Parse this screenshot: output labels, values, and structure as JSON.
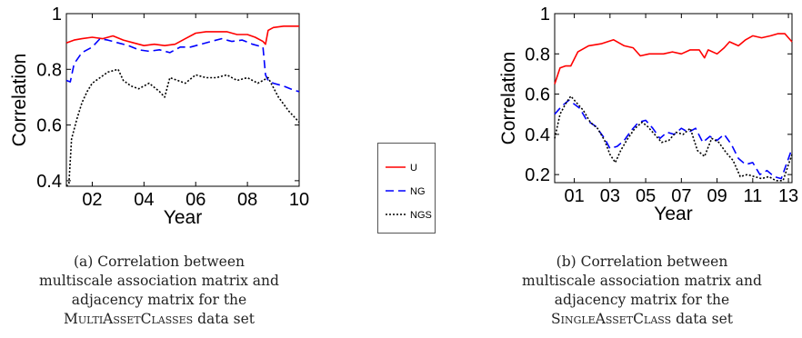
{
  "legend": [
    {
      "name": "U",
      "color": "#ff0000",
      "dash": "solid"
    },
    {
      "name": "NG",
      "color": "#0000ff",
      "dash": "dashed"
    },
    {
      "name": "NGS",
      "color": "#000000",
      "dash": "dotted"
    }
  ],
  "captions": {
    "a": {
      "lines": [
        "(a) Correlation between",
        "multiscale association matrix and",
        "adjacency matrix for the"
      ],
      "dataset_name": "MultiAssetClasses",
      "suffix": " data set"
    },
    "b": {
      "lines": [
        "(b) Correlation between",
        "multiscale association matrix and",
        "adjacency matrix for the"
      ],
      "dataset_name": "SingleAssetClass",
      "suffix": " data set"
    }
  },
  "chart_data": [
    {
      "type": "line",
      "xlabel": "Year",
      "ylabel": "Correlation",
      "xlim": [
        2001.0,
        2010.0
      ],
      "ylim": [
        0.38,
        1.0
      ],
      "xticks": [
        2002,
        2004,
        2006,
        2008,
        2010
      ],
      "xticklabels": [
        "02",
        "04",
        "06",
        "08",
        "10"
      ],
      "yticks": [
        0.4,
        0.6,
        0.8,
        1.0
      ],
      "yticklabels": [
        "0.4",
        "0.6",
        "0.8",
        "1"
      ],
      "series": [
        {
          "name": "U",
          "x": [
            2001.0,
            2001.3,
            2001.6,
            2002.0,
            2002.4,
            2002.8,
            2003.2,
            2003.6,
            2004.0,
            2004.4,
            2004.8,
            2005.2,
            2005.6,
            2006.0,
            2006.4,
            2006.8,
            2007.2,
            2007.6,
            2008.0,
            2008.3,
            2008.6,
            2008.7,
            2008.8,
            2009.0,
            2009.4,
            2009.8,
            2010.0
          ],
          "y": [
            0.895,
            0.905,
            0.91,
            0.915,
            0.91,
            0.92,
            0.905,
            0.895,
            0.885,
            0.89,
            0.885,
            0.89,
            0.91,
            0.93,
            0.935,
            0.935,
            0.935,
            0.925,
            0.925,
            0.915,
            0.9,
            0.89,
            0.94,
            0.95,
            0.955,
            0.955,
            0.955
          ]
        },
        {
          "name": "NG",
          "x": [
            2001.0,
            2001.15,
            2001.3,
            2001.6,
            2002.0,
            2002.3,
            2002.6,
            2003.0,
            2003.4,
            2003.8,
            2004.2,
            2004.6,
            2005.0,
            2005.4,
            2005.8,
            2006.2,
            2006.6,
            2007.0,
            2007.4,
            2007.8,
            2008.2,
            2008.6,
            2008.7,
            2008.8,
            2009.0,
            2009.4,
            2009.8,
            2010.0
          ],
          "y": [
            0.76,
            0.755,
            0.82,
            0.86,
            0.88,
            0.91,
            0.905,
            0.895,
            0.885,
            0.87,
            0.865,
            0.87,
            0.86,
            0.88,
            0.88,
            0.89,
            0.9,
            0.91,
            0.9,
            0.905,
            0.89,
            0.88,
            0.78,
            0.76,
            0.75,
            0.74,
            0.725,
            0.72
          ]
        },
        {
          "name": "NGS",
          "x": [
            2001.0,
            2001.1,
            2001.2,
            2001.4,
            2001.6,
            2001.8,
            2002.0,
            2002.3,
            2002.6,
            2003.0,
            2003.2,
            2003.5,
            2003.8,
            2004.2,
            2004.6,
            2004.8,
            2005.0,
            2005.3,
            2005.6,
            2006.0,
            2006.4,
            2006.8,
            2007.2,
            2007.6,
            2008.0,
            2008.4,
            2008.8,
            2009.2,
            2009.6,
            2010.0
          ],
          "y": [
            0.38,
            0.39,
            0.55,
            0.62,
            0.68,
            0.72,
            0.75,
            0.77,
            0.79,
            0.8,
            0.76,
            0.74,
            0.73,
            0.75,
            0.72,
            0.7,
            0.77,
            0.76,
            0.75,
            0.78,
            0.77,
            0.77,
            0.78,
            0.76,
            0.77,
            0.75,
            0.77,
            0.7,
            0.65,
            0.61
          ]
        }
      ]
    },
    {
      "type": "line",
      "xlabel": "Year",
      "ylabel": "Correlation",
      "xlim": [
        1999.9,
        2013.2
      ],
      "ylim": [
        0.16,
        1.0
      ],
      "xticks": [
        2001,
        2003,
        2005,
        2007,
        2009,
        2011,
        2013
      ],
      "xticklabels": [
        "01",
        "03",
        "05",
        "07",
        "09",
        "11",
        "13"
      ],
      "yticks": [
        0.2,
        0.4,
        0.6,
        0.8,
        1.0
      ],
      "yticklabels": [
        "0.2",
        "0.4",
        "0.6",
        "0.8",
        "1"
      ],
      "series": [
        {
          "name": "U",
          "x": [
            1999.9,
            2000.2,
            2000.5,
            2000.8,
            2001.2,
            2001.8,
            2002.5,
            2003.2,
            2003.8,
            2004.3,
            2004.7,
            2005.2,
            2005.6,
            2006.0,
            2006.5,
            2007.0,
            2007.5,
            2008.0,
            2008.3,
            2008.5,
            2009.0,
            2009.4,
            2009.7,
            2010.2,
            2010.6,
            2011.0,
            2011.5,
            2012.0,
            2012.4,
            2012.8,
            2013.0,
            2013.2
          ],
          "y": [
            0.65,
            0.73,
            0.74,
            0.74,
            0.81,
            0.84,
            0.85,
            0.87,
            0.84,
            0.83,
            0.79,
            0.8,
            0.8,
            0.8,
            0.81,
            0.8,
            0.82,
            0.82,
            0.78,
            0.82,
            0.8,
            0.83,
            0.86,
            0.84,
            0.87,
            0.89,
            0.88,
            0.89,
            0.9,
            0.9,
            0.88,
            0.86
          ]
        },
        {
          "name": "NG",
          "x": [
            1999.9,
            2000.3,
            2000.7,
            2001.0,
            2001.3,
            2001.7,
            2002.2,
            2002.7,
            2003.0,
            2003.4,
            2003.8,
            2004.2,
            2004.6,
            2005.0,
            2005.4,
            2005.8,
            2006.2,
            2006.6,
            2007.0,
            2007.4,
            2007.8,
            2008.2,
            2008.6,
            2009.0,
            2009.4,
            2009.8,
            2010.2,
            2010.6,
            2011.0,
            2011.4,
            2011.8,
            2012.2,
            2012.6,
            2013.0,
            2013.2
          ],
          "y": [
            0.5,
            0.54,
            0.57,
            0.55,
            0.53,
            0.47,
            0.44,
            0.38,
            0.33,
            0.34,
            0.37,
            0.42,
            0.46,
            0.47,
            0.43,
            0.38,
            0.41,
            0.4,
            0.43,
            0.41,
            0.43,
            0.36,
            0.39,
            0.37,
            0.4,
            0.35,
            0.28,
            0.25,
            0.26,
            0.2,
            0.22,
            0.19,
            0.18,
            0.28,
            0.33
          ]
        },
        {
          "name": "NGS",
          "x": [
            1999.9,
            2000.2,
            2000.5,
            2000.8,
            2001.1,
            2001.5,
            2001.9,
            2002.3,
            2002.7,
            2003.0,
            2003.3,
            2003.6,
            2004.0,
            2004.4,
            2004.8,
            2005.1,
            2005.5,
            2005.9,
            2006.3,
            2006.7,
            2007.1,
            2007.5,
            2007.9,
            2008.3,
            2008.7,
            2009.1,
            2009.5,
            2009.9,
            2010.3,
            2010.7,
            2011.1,
            2011.5,
            2011.9,
            2012.3,
            2012.7,
            2013.0,
            2013.2
          ],
          "y": [
            0.38,
            0.5,
            0.55,
            0.59,
            0.56,
            0.52,
            0.46,
            0.43,
            0.37,
            0.3,
            0.26,
            0.32,
            0.38,
            0.43,
            0.46,
            0.44,
            0.4,
            0.36,
            0.37,
            0.41,
            0.4,
            0.43,
            0.32,
            0.29,
            0.38,
            0.36,
            0.31,
            0.27,
            0.19,
            0.2,
            0.19,
            0.18,
            0.19,
            0.17,
            0.17,
            0.25,
            0.3
          ]
        }
      ]
    }
  ]
}
